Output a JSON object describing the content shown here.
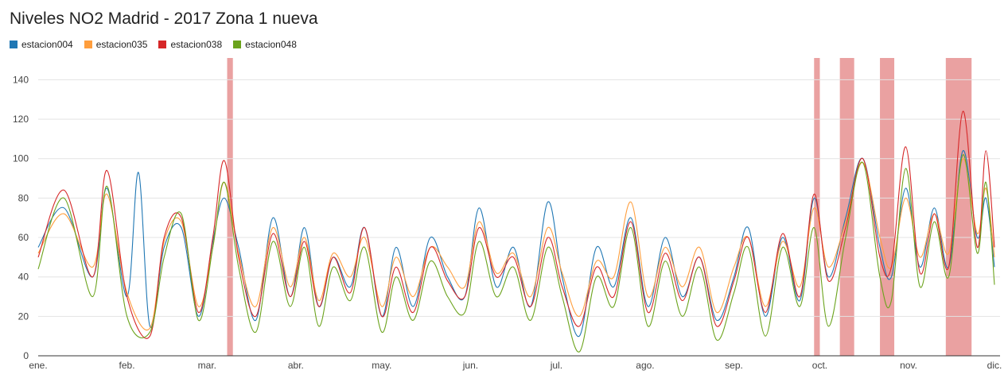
{
  "chart_data": {
    "type": "line",
    "title": "Niveles NO2 Madrid - 2017 Zona 1 nueva",
    "xlabel": "",
    "ylabel": "",
    "ylim": [
      0,
      145
    ],
    "yticks": [
      0,
      20,
      40,
      60,
      80,
      100,
      120,
      140
    ],
    "xlim": [
      "2017-01-01",
      "2017-12-01"
    ],
    "month_ticks": [
      {
        "label": "ene.",
        "date": "2017-01-01"
      },
      {
        "label": "feb.",
        "date": "2017-02-01"
      },
      {
        "label": "mar.",
        "date": "2017-03-01"
      },
      {
        "label": "abr.",
        "date": "2017-04-01"
      },
      {
        "label": "may.",
        "date": "2017-05-01"
      },
      {
        "label": "jun.",
        "date": "2017-06-01"
      },
      {
        "label": "jul.",
        "date": "2017-07-01"
      },
      {
        "label": "ago.",
        "date": "2017-08-01"
      },
      {
        "label": "sep.",
        "date": "2017-09-01"
      },
      {
        "label": "oct.",
        "date": "2017-10-01"
      },
      {
        "label": "nov.",
        "date": "2017-11-01"
      },
      {
        "label": "dic.",
        "date": "2017-12-01"
      }
    ],
    "grid": true,
    "legend_position": "top-left",
    "highlight_color": "#eaa1a1",
    "highlight_ranges": [
      [
        "2017-03-08",
        "2017-03-10"
      ],
      [
        "2017-09-29",
        "2017-10-01"
      ],
      [
        "2017-10-08",
        "2017-10-13"
      ],
      [
        "2017-10-22",
        "2017-10-27"
      ],
      [
        "2017-11-14",
        "2017-11-23"
      ]
    ],
    "series": [
      {
        "name": "estacion004",
        "color": "#1f77b4",
        "x": [
          "2017-01-01",
          "2017-01-10",
          "2017-01-20",
          "2017-01-25",
          "2017-02-01",
          "2017-02-05",
          "2017-02-09",
          "2017-02-14",
          "2017-02-20",
          "2017-02-26",
          "2017-03-03",
          "2017-03-07",
          "2017-03-12",
          "2017-03-18",
          "2017-03-24",
          "2017-03-30",
          "2017-04-04",
          "2017-04-09",
          "2017-04-14",
          "2017-04-20",
          "2017-04-25",
          "2017-05-01",
          "2017-05-06",
          "2017-05-12",
          "2017-05-18",
          "2017-05-24",
          "2017-05-30",
          "2017-06-04",
          "2017-06-10",
          "2017-06-16",
          "2017-06-22",
          "2017-06-28",
          "2017-07-03",
          "2017-07-09",
          "2017-07-15",
          "2017-07-21",
          "2017-07-27",
          "2017-08-02",
          "2017-08-08",
          "2017-08-14",
          "2017-08-20",
          "2017-08-26",
          "2017-09-01",
          "2017-09-06",
          "2017-09-12",
          "2017-09-18",
          "2017-09-24",
          "2017-09-29",
          "2017-10-04",
          "2017-10-10",
          "2017-10-16",
          "2017-10-22",
          "2017-10-26",
          "2017-10-31",
          "2017-11-05",
          "2017-11-10",
          "2017-11-15",
          "2017-11-20",
          "2017-11-25",
          "2017-11-28",
          "2017-12-01"
        ],
        "y": [
          55,
          75,
          40,
          85,
          30,
          93,
          15,
          55,
          65,
          20,
          58,
          80,
          55,
          18,
          70,
          30,
          65,
          25,
          50,
          35,
          65,
          20,
          55,
          25,
          60,
          40,
          30,
          75,
          35,
          55,
          25,
          78,
          40,
          10,
          55,
          35,
          70,
          25,
          60,
          30,
          50,
          18,
          40,
          65,
          20,
          60,
          28,
          80,
          40,
          70,
          100,
          55,
          40,
          85,
          45,
          75,
          45,
          104,
          60,
          80,
          45
        ]
      },
      {
        "name": "estacion035",
        "color": "#ff9e3d",
        "x": [
          "2017-01-01",
          "2017-01-10",
          "2017-01-20",
          "2017-01-25",
          "2017-02-01",
          "2017-02-09",
          "2017-02-14",
          "2017-02-20",
          "2017-02-26",
          "2017-03-03",
          "2017-03-07",
          "2017-03-12",
          "2017-03-18",
          "2017-03-24",
          "2017-03-30",
          "2017-04-04",
          "2017-04-09",
          "2017-04-14",
          "2017-04-20",
          "2017-04-25",
          "2017-05-01",
          "2017-05-06",
          "2017-05-12",
          "2017-05-18",
          "2017-05-24",
          "2017-05-30",
          "2017-06-04",
          "2017-06-10",
          "2017-06-16",
          "2017-06-22",
          "2017-06-28",
          "2017-07-03",
          "2017-07-09",
          "2017-07-15",
          "2017-07-21",
          "2017-07-27",
          "2017-08-02",
          "2017-08-08",
          "2017-08-14",
          "2017-08-20",
          "2017-08-26",
          "2017-09-01",
          "2017-09-06",
          "2017-09-12",
          "2017-09-18",
          "2017-09-24",
          "2017-09-29",
          "2017-10-04",
          "2017-10-10",
          "2017-10-16",
          "2017-10-22",
          "2017-10-26",
          "2017-10-31",
          "2017-11-05",
          "2017-11-10",
          "2017-11-15",
          "2017-11-20",
          "2017-11-25",
          "2017-11-28",
          "2017-12-01"
        ],
        "y": [
          52,
          72,
          45,
          82,
          32,
          14,
          58,
          68,
          25,
          55,
          88,
          52,
          25,
          65,
          35,
          60,
          28,
          52,
          40,
          60,
          25,
          50,
          30,
          55,
          45,
          35,
          68,
          42,
          52,
          30,
          65,
          42,
          20,
          48,
          40,
          78,
          30,
          55,
          35,
          55,
          22,
          45,
          60,
          25,
          58,
          35,
          75,
          45,
          68,
          98,
          60,
          45,
          80,
          50,
          72,
          52,
          100,
          62,
          85,
          50
        ]
      },
      {
        "name": "estacion038",
        "color": "#d62728",
        "x": [
          "2017-01-01",
          "2017-01-10",
          "2017-01-20",
          "2017-01-25",
          "2017-02-01",
          "2017-02-09",
          "2017-02-14",
          "2017-02-20",
          "2017-02-26",
          "2017-03-03",
          "2017-03-07",
          "2017-03-12",
          "2017-03-18",
          "2017-03-24",
          "2017-03-30",
          "2017-04-04",
          "2017-04-09",
          "2017-04-14",
          "2017-04-20",
          "2017-04-25",
          "2017-05-01",
          "2017-05-06",
          "2017-05-12",
          "2017-05-18",
          "2017-05-24",
          "2017-05-30",
          "2017-06-04",
          "2017-06-10",
          "2017-06-16",
          "2017-06-22",
          "2017-06-28",
          "2017-07-03",
          "2017-07-09",
          "2017-07-15",
          "2017-07-21",
          "2017-07-27",
          "2017-08-02",
          "2017-08-08",
          "2017-08-14",
          "2017-08-20",
          "2017-08-26",
          "2017-09-01",
          "2017-09-06",
          "2017-09-12",
          "2017-09-18",
          "2017-09-24",
          "2017-09-29",
          "2017-10-04",
          "2017-10-10",
          "2017-10-16",
          "2017-10-22",
          "2017-10-26",
          "2017-10-31",
          "2017-11-05",
          "2017-11-10",
          "2017-11-15",
          "2017-11-20",
          "2017-11-25",
          "2017-11-28",
          "2017-12-01"
        ],
        "y": [
          50,
          84,
          40,
          94,
          30,
          10,
          60,
          70,
          22,
          60,
          99,
          50,
          20,
          62,
          30,
          58,
          25,
          50,
          32,
          65,
          20,
          45,
          22,
          55,
          38,
          30,
          65,
          40,
          50,
          25,
          60,
          35,
          15,
          45,
          30,
          68,
          22,
          52,
          28,
          50,
          15,
          38,
          60,
          22,
          62,
          30,
          82,
          38,
          65,
          100,
          50,
          45,
          106,
          42,
          72,
          45,
          124,
          55,
          104,
          55
        ]
      },
      {
        "name": "estacion048",
        "color": "#6ba31c",
        "x": [
          "2017-01-01",
          "2017-01-10",
          "2017-01-20",
          "2017-01-25",
          "2017-02-01",
          "2017-02-09",
          "2017-02-14",
          "2017-02-20",
          "2017-02-26",
          "2017-03-03",
          "2017-03-07",
          "2017-03-12",
          "2017-03-18",
          "2017-03-24",
          "2017-03-30",
          "2017-04-04",
          "2017-04-09",
          "2017-04-14",
          "2017-04-20",
          "2017-04-25",
          "2017-05-01",
          "2017-05-06",
          "2017-05-12",
          "2017-05-18",
          "2017-05-24",
          "2017-05-30",
          "2017-06-04",
          "2017-06-10",
          "2017-06-16",
          "2017-06-22",
          "2017-06-28",
          "2017-07-03",
          "2017-07-09",
          "2017-07-15",
          "2017-07-21",
          "2017-07-27",
          "2017-08-02",
          "2017-08-08",
          "2017-08-14",
          "2017-08-20",
          "2017-08-26",
          "2017-09-01",
          "2017-09-06",
          "2017-09-12",
          "2017-09-18",
          "2017-09-24",
          "2017-09-29",
          "2017-10-04",
          "2017-10-10",
          "2017-10-16",
          "2017-10-22",
          "2017-10-26",
          "2017-10-31",
          "2017-11-05",
          "2017-11-10",
          "2017-11-15",
          "2017-11-20",
          "2017-11-25",
          "2017-11-28",
          "2017-12-01"
        ],
        "y": [
          44,
          80,
          30,
          86,
          20,
          12,
          50,
          72,
          18,
          55,
          88,
          45,
          12,
          58,
          25,
          55,
          15,
          45,
          28,
          55,
          12,
          40,
          18,
          48,
          30,
          22,
          58,
          30,
          45,
          18,
          55,
          30,
          2,
          40,
          25,
          65,
          15,
          48,
          20,
          45,
          8,
          32,
          55,
          10,
          55,
          25,
          65,
          15,
          60,
          98,
          40,
          28,
          95,
          35,
          68,
          40,
          102,
          52,
          88,
          36
        ]
      }
    ]
  }
}
